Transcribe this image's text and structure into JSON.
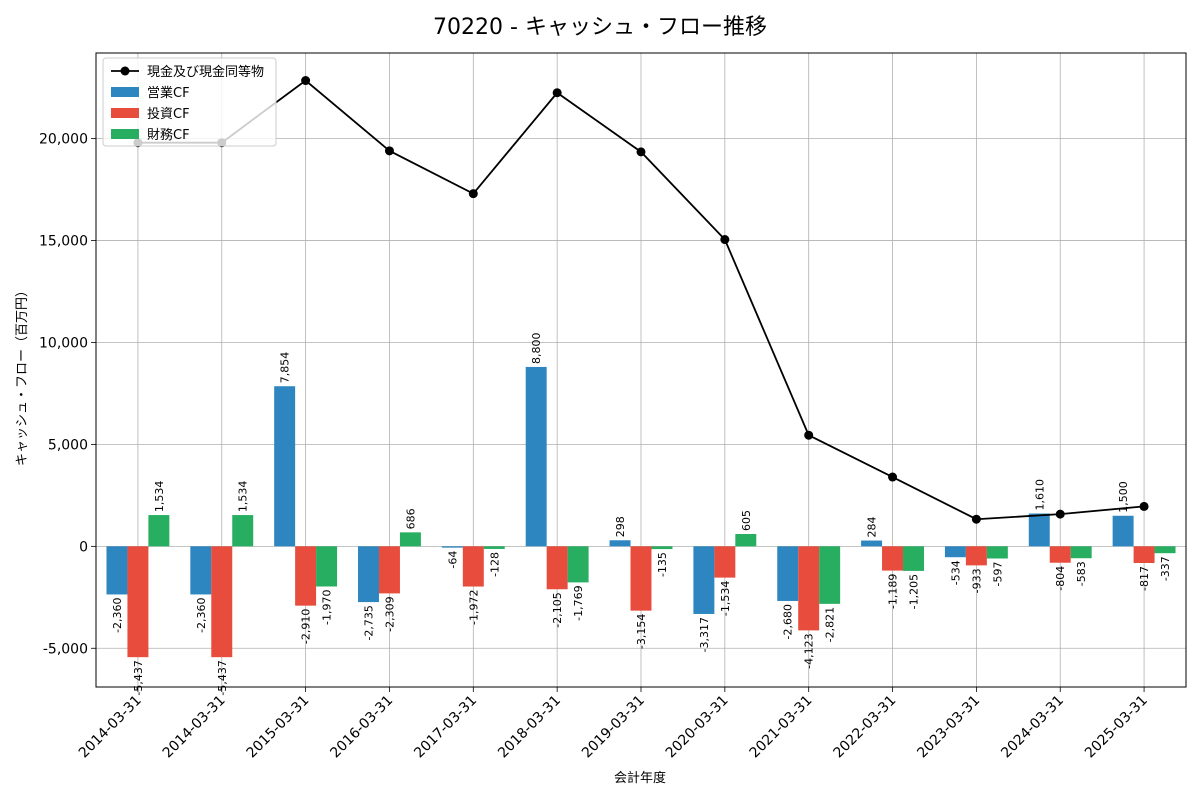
{
  "chart_data": {
    "type": "bar",
    "title": "70220 - キャッシュ・フロー推移",
    "xlabel": "会計年度",
    "ylabel": "キャッシュ・フロー（百万円）",
    "categories": [
      "2014-03-31",
      "2014-03-31",
      "2015-03-31",
      "2016-03-31",
      "2017-03-31",
      "2018-03-31",
      "2019-03-31",
      "2020-03-31",
      "2021-03-31",
      "2022-03-31",
      "2023-03-31",
      "2024-03-31",
      "2025-03-31"
    ],
    "ylim": [
      -6900,
      24200
    ],
    "yticks": [
      -5000,
      0,
      5000,
      10000,
      15000,
      20000
    ],
    "ytick_labels": [
      "-5,000",
      "0",
      "5,000",
      "10,000",
      "15,000",
      "20,000"
    ],
    "grid": true,
    "legend_position": "top-left",
    "series": [
      {
        "name": "営業CF",
        "kind": "bar",
        "color": "#2e86c1",
        "values": [
          -2360,
          -2360,
          7854,
          -2735,
          -64,
          8800,
          298,
          -3317,
          -2680,
          284,
          -534,
          1610,
          1500
        ],
        "labels": [
          "-2,360",
          "-2,360",
          "7,854",
          "-2,735",
          "-64",
          "8,800",
          "298",
          "-3,317",
          "-2,680",
          "284",
          "-534",
          "1,610",
          "1,500"
        ]
      },
      {
        "name": "投資CF",
        "kind": "bar",
        "color": "#e74c3c",
        "values": [
          -5437,
          -5437,
          -2910,
          -2309,
          -1972,
          -2105,
          -3154,
          -1534,
          -4123,
          -1189,
          -933,
          -804,
          -817
        ],
        "labels": [
          "-5,437",
          "-5,437",
          "-2,910",
          "-2,309",
          "-1,972",
          "-2,105",
          "-3,154",
          "-1,534",
          "-4,123",
          "-1,189",
          "-933",
          "-804",
          "-817"
        ]
      },
      {
        "name": "財務CF",
        "kind": "bar",
        "color": "#27ae60",
        "values": [
          1534,
          1534,
          -1970,
          686,
          -128,
          -1769,
          -135,
          605,
          -2821,
          -1205,
          -597,
          -583,
          -337
        ],
        "labels": [
          "1,534",
          "1,534",
          "-1,970",
          "686",
          "-128",
          "-1,769",
          "-135",
          "605",
          "-2,821",
          "-1,205",
          "-597",
          "-583",
          "-337"
        ]
      },
      {
        "name": "現金及び現金同等物",
        "kind": "line",
        "color": "#000000",
        "values": [
          19800,
          19800,
          22850,
          19400,
          17300,
          22250,
          19350,
          15050,
          5450,
          3400,
          1330,
          1580,
          1960
        ]
      }
    ]
  }
}
